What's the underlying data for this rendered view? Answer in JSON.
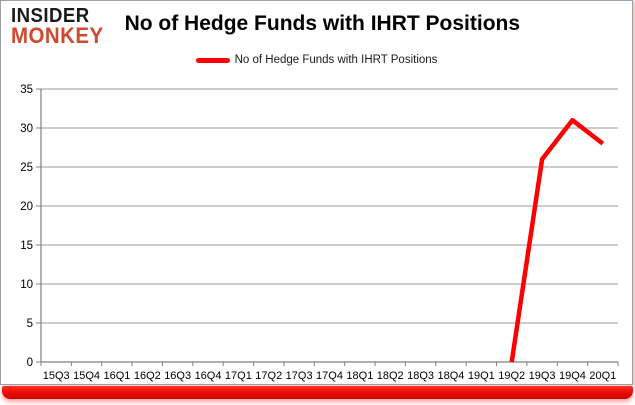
{
  "header": {
    "logo_line1": "INSIDER",
    "logo_line2": "MONKEY",
    "title": "No of Hedge Funds with IHRT Positions"
  },
  "legend": {
    "label": "No of Hedge Funds with IHRT Positions",
    "swatch_color": "#fe0000"
  },
  "chart_data": {
    "type": "line",
    "title": "No of Hedge Funds with IHRT Positions",
    "categories": [
      "15Q3",
      "15Q4",
      "16Q1",
      "16Q2",
      "16Q3",
      "16Q4",
      "17Q1",
      "17Q2",
      "17Q3",
      "17Q4",
      "18Q1",
      "18Q2",
      "18Q3",
      "18Q4",
      "19Q1",
      "19Q2",
      "19Q3",
      "19Q4",
      "20Q1"
    ],
    "series": [
      {
        "name": "No of Hedge Funds with IHRT Positions",
        "color": "#fe0000",
        "values": [
          null,
          null,
          null,
          null,
          null,
          null,
          null,
          null,
          null,
          null,
          null,
          null,
          null,
          null,
          null,
          0,
          26,
          31,
          28
        ]
      }
    ],
    "xlabel": "",
    "ylabel": "",
    "ylim": [
      0,
      35
    ],
    "yticks": [
      0,
      5,
      10,
      15,
      20,
      25,
      30,
      35
    ],
    "grid": true,
    "legend_position": "top-center"
  },
  "colors": {
    "series_line": "#fe0000",
    "logo_accent": "#d04a31",
    "gridline": "#9a9a9a",
    "axis": "#7f7f7f",
    "bottom_bar": "#ef0d07",
    "card_border": "#9aa0a4",
    "text": "#000000"
  }
}
